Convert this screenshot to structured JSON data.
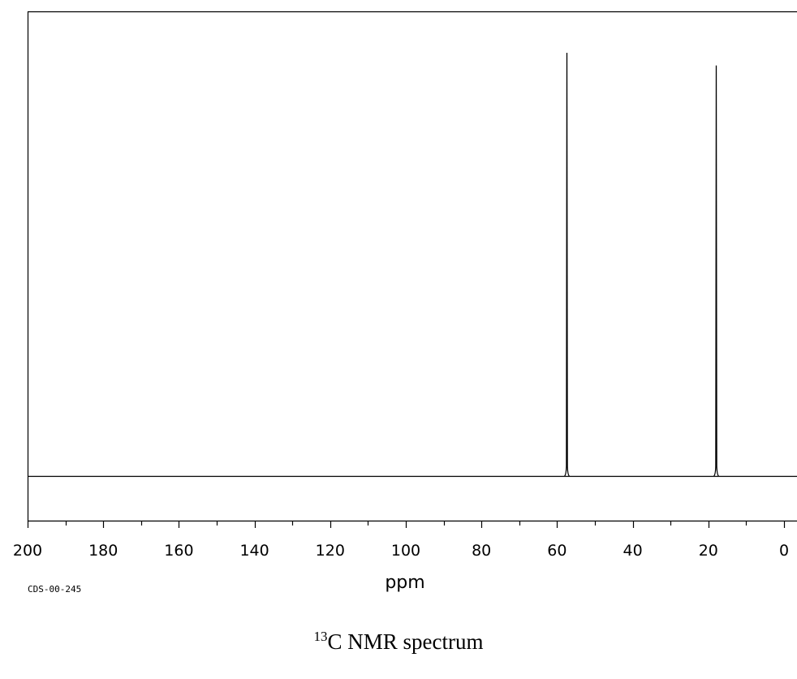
{
  "chart_data": {
    "type": "line",
    "title": "",
    "xlabel": "ppm",
    "ylabel": "",
    "xlim": [
      200,
      -2
    ],
    "x_reversed": true,
    "x_ticks": [
      200,
      180,
      160,
      140,
      120,
      100,
      80,
      60,
      40,
      20,
      0
    ],
    "x_tick_labels": [
      "200",
      "180",
      "160",
      "140",
      "120",
      "100",
      "80",
      "60",
      "40",
      "20",
      "0"
    ],
    "peaks": [
      {
        "ppm": 57.5,
        "relative_intensity": 1.0
      },
      {
        "ppm": 18.0,
        "relative_intensity": 0.97
      }
    ],
    "grid": false,
    "legend": "none",
    "line_color": "#000000",
    "code_label": "CDS-00-245"
  },
  "caption": {
    "superscript": "13",
    "text": "C NMR spectrum"
  }
}
